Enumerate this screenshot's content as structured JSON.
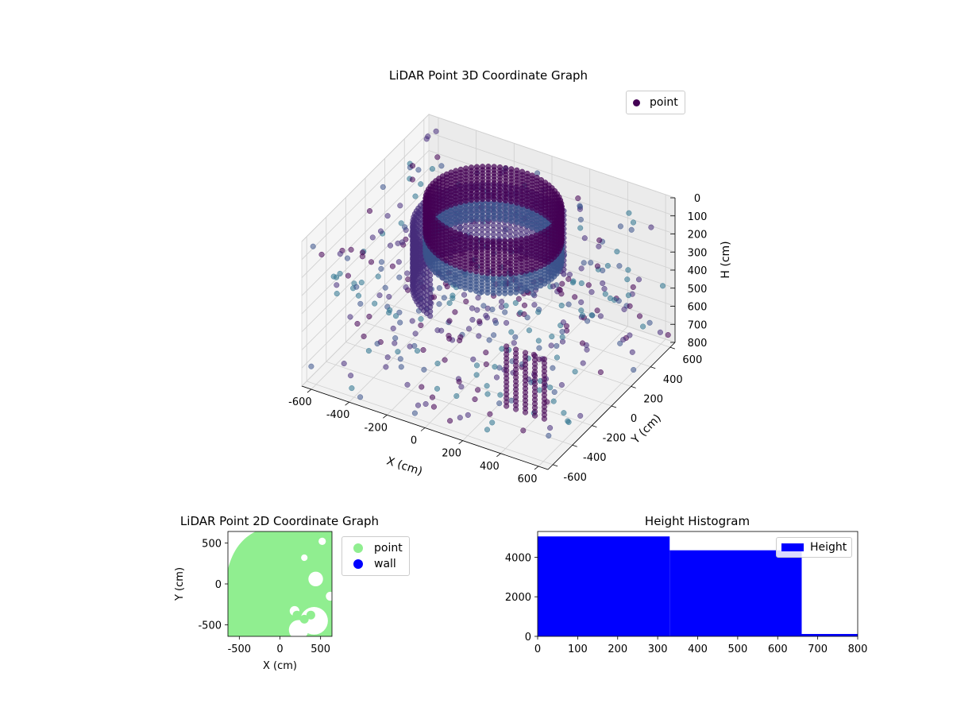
{
  "chart_data": [
    {
      "type": "scatter",
      "projection": "3d",
      "title": "LiDAR Point 3D Coordinate Graph",
      "xlabel": "X (cm)",
      "ylabel": "Y (cm)",
      "zlabel": "H (cm)",
      "xticks": [
        -600,
        -400,
        -200,
        0,
        200,
        400,
        600
      ],
      "yticks": [
        -600,
        -400,
        -200,
        0,
        200,
        400,
        600
      ],
      "zticks": [
        0,
        100,
        200,
        300,
        400,
        500,
        600,
        700,
        800
      ],
      "xlim": [
        -650,
        650
      ],
      "ylim": [
        -650,
        650
      ],
      "zlim": [
        800,
        0
      ],
      "z_axis_inverted": true,
      "grid": true,
      "legend": {
        "position": "top-right",
        "entries": [
          {
            "label": "point",
            "color": "#440154"
          }
        ]
      },
      "colormap": "viridis",
      "series": [
        {
          "name": "point",
          "structures": [
            {
              "kind": "cylinder",
              "center": [
                -50,
                150
              ],
              "radius": 320,
              "h_range": [
                0,
                300
              ]
            },
            {
              "kind": "arc-wall",
              "center": [
                -50,
                150
              ],
              "radius": 380,
              "h_range": [
                150,
                500
              ]
            },
            {
              "kind": "columns",
              "x": [
                250,
                300,
                350,
                400,
                450
              ],
              "y": [
                -300,
                -300,
                -300,
                -300,
                -300
              ],
              "h_range": [
                450,
                800
              ]
            },
            {
              "kind": "scatter",
              "approx_count": 450,
              "note": "sparse points"
            }
          ]
        }
      ]
    },
    {
      "type": "scatter",
      "title": "LiDAR Point 2D Coordinate Graph",
      "xlabel": "X (cm)",
      "ylabel": "Y (cm)",
      "xticks": [
        -500,
        0,
        500
      ],
      "yticks": [
        -500,
        0,
        500
      ],
      "xlim": [
        -640,
        640
      ],
      "ylim": [
        -640,
        640
      ],
      "legend": {
        "position": "outside-right",
        "entries": [
          {
            "label": "point",
            "color": "#90ee90"
          },
          {
            "label": "wall",
            "color": "#0000ff"
          }
        ]
      },
      "series": [
        {
          "name": "point",
          "color": "#90ee90",
          "coverage": "dense green region covering most of the field with white holes"
        },
        {
          "name": "wall",
          "color": "#0000ff",
          "values": []
        }
      ]
    },
    {
      "type": "bar",
      "subtype": "histogram",
      "title": "Height Histogram",
      "xlabel": "",
      "ylabel": "",
      "xlim": [
        0,
        800
      ],
      "ylim": [
        0,
        5300
      ],
      "xticks": [
        0,
        100,
        200,
        300,
        400,
        500,
        600,
        700,
        800
      ],
      "yticks": [
        0,
        2000,
        4000
      ],
      "bins": [
        [
          0,
          330
        ],
        [
          330,
          660
        ],
        [
          660,
          800
        ]
      ],
      "values": [
        5050,
        4350,
        120
      ],
      "color": "#0000ff",
      "legend": {
        "position": "top-right",
        "entries": [
          {
            "label": "Height",
            "color": "#0000ff"
          }
        ]
      }
    }
  ],
  "titles": {
    "main3d": "LiDAR Point 3D Coordinate Graph",
    "plot2d": "LiDAR Point 2D Coordinate Graph",
    "hist": "Height Histogram"
  },
  "legends": {
    "main3d": [
      "point"
    ],
    "plot2d": [
      "point",
      "wall"
    ],
    "hist": [
      "Height"
    ]
  },
  "axis_labels": {
    "x3d": "X (cm)",
    "y3d": "Y (cm)",
    "z3d": "H (cm)",
    "x2d": "X (cm)",
    "y2d": "Y (cm)"
  }
}
